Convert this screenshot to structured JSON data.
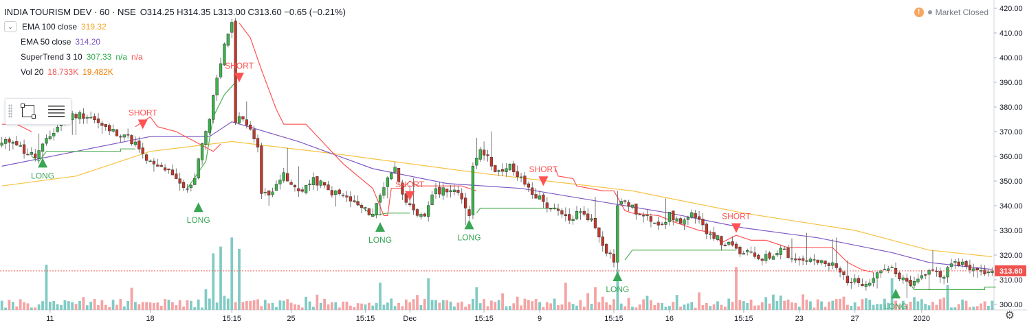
{
  "header": {
    "symbol": "INDIA TOURISM DEV · 60 · NSE",
    "ohlc": "O314.25 H314.35 L313.00 C313.60 −0.65 (−0.21%)",
    "collapse_icon": "chevron-down-icon"
  },
  "indicators": [
    {
      "name": "EMA 100 close",
      "values": [
        "319.32"
      ],
      "colors": [
        "#f5c242"
      ]
    },
    {
      "name": "EMA 50 close",
      "values": [
        "314.20"
      ],
      "colors": [
        "#7e57c2"
      ]
    },
    {
      "name": "SuperTrend 3 10",
      "values": [
        "307.33",
        "n/a",
        "n/a"
      ],
      "colors": [
        "#2eaa4a",
        "#2eaa4a",
        "#ef5350"
      ]
    },
    {
      "name": "Vol 20",
      "values": [
        "18.733K",
        "19.482K"
      ],
      "colors": [
        "#ef5350",
        "#f57c00"
      ]
    }
  ],
  "market_status": {
    "label": "Market Closed",
    "warn_icon": "!"
  },
  "colors": {
    "up": "#26a69a",
    "down": "#ef5350",
    "up_body": "#3ab34a",
    "down_body": "#c0392b",
    "ema100": "#f5c242",
    "ema50": "#7e57c2",
    "st_up": "#4caf50",
    "st_down": "#ff5252",
    "last_price": "#ef5350"
  },
  "price_tag": "313.60",
  "chart_data": {
    "type": "candlestick",
    "title": "INDIA TOURISM DEV · 60 · NSE",
    "ylim": [
      298,
      422
    ],
    "y_ticks": [
      300,
      310,
      320,
      330,
      340,
      350,
      360,
      370,
      380,
      390,
      400,
      410,
      420
    ],
    "y_tick_labels": [
      "300.00",
      "310.00",
      "320.00",
      "330.00",
      "340.00",
      "350.00",
      "360.00",
      "370.00",
      "380.00",
      "390.00",
      "400.00",
      "410.00",
      "420.00"
    ],
    "x_ticks": [
      "11",
      "18",
      "15:15",
      "25",
      "15:15",
      "Dec",
      "15:15",
      "9",
      "15:15",
      "16",
      "15:15",
      "23",
      "27",
      "2020"
    ],
    "x_tick_positions": [
      13,
      40,
      62,
      78,
      98,
      110,
      130,
      145,
      165,
      180,
      200,
      215,
      230,
      248
    ],
    "bar_count": 268,
    "anchors": [
      [
        0,
        365
      ],
      [
        3,
        367
      ],
      [
        6,
        362
      ],
      [
        9,
        360
      ],
      [
        12,
        366
      ],
      [
        15,
        372
      ],
      [
        18,
        376
      ],
      [
        21,
        377
      ],
      [
        24,
        376
      ],
      [
        27,
        372
      ],
      [
        30,
        370
      ],
      [
        33,
        369
      ],
      [
        36,
        365
      ],
      [
        38,
        360
      ],
      [
        41,
        356
      ],
      [
        44,
        355
      ],
      [
        47,
        350
      ],
      [
        50,
        346
      ],
      [
        52,
        352
      ],
      [
        54,
        366
      ],
      [
        56,
        375
      ],
      [
        58,
        392
      ],
      [
        60,
        405
      ],
      [
        62,
        413
      ],
      [
        63,
        375
      ],
      [
        65,
        376
      ],
      [
        67,
        370
      ],
      [
        69,
        365
      ],
      [
        70,
        345
      ],
      [
        72,
        344
      ],
      [
        74,
        350
      ],
      [
        76,
        352
      ],
      [
        78,
        348
      ],
      [
        80,
        346
      ],
      [
        82,
        348
      ],
      [
        84,
        350
      ],
      [
        86,
        349
      ],
      [
        88,
        346
      ],
      [
        90,
        345
      ],
      [
        92,
        344
      ],
      [
        94,
        342
      ],
      [
        96,
        340
      ],
      [
        98,
        338
      ],
      [
        100,
        337
      ],
      [
        102,
        344
      ],
      [
        104,
        352
      ],
      [
        106,
        355
      ],
      [
        108,
        346
      ],
      [
        110,
        339
      ],
      [
        112,
        335
      ],
      [
        114,
        336
      ],
      [
        116,
        345
      ],
      [
        118,
        346
      ],
      [
        120,
        347
      ],
      [
        122,
        346
      ],
      [
        124,
        342
      ],
      [
        126,
        337
      ],
      [
        127,
        356
      ],
      [
        129,
        364
      ],
      [
        131,
        359
      ],
      [
        133,
        355
      ],
      [
        135,
        353
      ],
      [
        137,
        356
      ],
      [
        139,
        352
      ],
      [
        141,
        349
      ],
      [
        143,
        345
      ],
      [
        145,
        343
      ],
      [
        147,
        340
      ],
      [
        149,
        338
      ],
      [
        151,
        336
      ],
      [
        153,
        334
      ],
      [
        155,
        337
      ],
      [
        157,
        337
      ],
      [
        159,
        334
      ],
      [
        161,
        328
      ],
      [
        163,
        322
      ],
      [
        165,
        318
      ],
      [
        166,
        340
      ],
      [
        168,
        342
      ],
      [
        170,
        339
      ],
      [
        172,
        336
      ],
      [
        174,
        335
      ],
      [
        176,
        334
      ],
      [
        178,
        333
      ],
      [
        180,
        336
      ],
      [
        182,
        334
      ],
      [
        184,
        334
      ],
      [
        186,
        336
      ],
      [
        188,
        333
      ],
      [
        190,
        330
      ],
      [
        192,
        328
      ],
      [
        194,
        325
      ],
      [
        196,
        324
      ],
      [
        198,
        322
      ],
      [
        200,
        320
      ],
      [
        202,
        321
      ],
      [
        204,
        319
      ],
      [
        206,
        319
      ],
      [
        208,
        320
      ],
      [
        210,
        324
      ],
      [
        212,
        320
      ],
      [
        214,
        318
      ],
      [
        216,
        318
      ],
      [
        218,
        318
      ],
      [
        220,
        317
      ],
      [
        222,
        316
      ],
      [
        224,
        316
      ],
      [
        226,
        313
      ],
      [
        228,
        310
      ],
      [
        230,
        309
      ],
      [
        232,
        309
      ],
      [
        234,
        310
      ],
      [
        236,
        313
      ],
      [
        238,
        315
      ],
      [
        240,
        314
      ],
      [
        242,
        310
      ],
      [
        244,
        309
      ],
      [
        246,
        308
      ],
      [
        248,
        311
      ],
      [
        250,
        314
      ],
      [
        252,
        313
      ],
      [
        254,
        312
      ],
      [
        256,
        315
      ],
      [
        258,
        317
      ],
      [
        260,
        316
      ],
      [
        262,
        314
      ],
      [
        264,
        313
      ],
      [
        267,
        313.6
      ]
    ],
    "series": [
      {
        "name": "EMA 100 close",
        "values": [
          [
            0,
            348
          ],
          [
            20,
            352
          ],
          [
            40,
            362
          ],
          [
            62,
            366
          ],
          [
            90,
            361
          ],
          [
            130,
            353
          ],
          [
            170,
            346
          ],
          [
            200,
            337
          ],
          [
            230,
            330
          ],
          [
            250,
            322
          ],
          [
            267,
            319.32
          ]
        ]
      },
      {
        "name": "EMA 50 close",
        "values": [
          [
            0,
            356
          ],
          [
            20,
            362
          ],
          [
            40,
            368
          ],
          [
            56,
            368
          ],
          [
            62,
            374
          ],
          [
            80,
            366
          ],
          [
            100,
            355
          ],
          [
            120,
            349
          ],
          [
            140,
            347
          ],
          [
            160,
            342
          ],
          [
            180,
            337
          ],
          [
            200,
            331
          ],
          [
            220,
            327
          ],
          [
            240,
            321
          ],
          [
            250,
            317
          ],
          [
            267,
            314.2
          ]
        ]
      }
    ],
    "supertrend_up": [
      [
        [
          8,
          360
        ],
        [
          10,
          358
        ],
        [
          12,
          362
        ],
        [
          32,
          362
        ],
        [
          32,
          363
        ],
        [
          36,
          363
        ]
      ],
      [
        [
          50,
          347
        ],
        [
          55,
          358
        ],
        [
          57,
          376
        ],
        [
          60,
          385
        ],
        [
          63,
          390
        ]
      ],
      [
        [
          95,
          342
        ],
        [
          100,
          336
        ],
        [
          104,
          337
        ],
        [
          110,
          337
        ]
      ],
      [
        [
          128,
          337
        ],
        [
          129,
          339
        ],
        [
          150,
          339
        ]
      ],
      [
        [
          168,
          318
        ],
        [
          170,
          322
        ],
        [
          198,
          322
        ]
      ],
      [
        [
          244,
          310
        ],
        [
          246,
          306
        ],
        [
          265,
          306
        ],
        [
          265,
          307
        ],
        [
          268,
          307
        ]
      ]
    ],
    "supertrend_down": [
      [
        [
          0,
          373
        ],
        [
          4,
          373
        ],
        [
          8,
          370
        ]
      ],
      [
        [
          36,
          372
        ],
        [
          40,
          376
        ],
        [
          42,
          372
        ],
        [
          47,
          370
        ],
        [
          52,
          366
        ],
        [
          57,
          362
        ],
        [
          59,
          365
        ]
      ],
      [
        [
          64,
          414
        ],
        [
          67,
          408
        ],
        [
          70,
          395
        ],
        [
          74,
          379
        ],
        [
          76,
          373
        ],
        [
          82,
          373
        ],
        [
          87,
          365
        ],
        [
          92,
          357
        ],
        [
          96,
          352
        ],
        [
          100,
          347
        ],
        [
          103,
          336
        ],
        [
          104,
          336
        ],
        [
          105,
          347
        ],
        [
          108,
          347
        ],
        [
          110,
          350
        ],
        [
          112,
          348
        ],
        [
          118,
          348
        ],
        [
          124,
          348
        ],
        [
          128,
          346
        ]
      ],
      [
        [
          149,
          356
        ],
        [
          150,
          352
        ],
        [
          154,
          351
        ],
        [
          155,
          348
        ],
        [
          162,
          346
        ],
        [
          165,
          346
        ],
        [
          168,
          338
        ],
        [
          170,
          337
        ],
        [
          177,
          336
        ],
        [
          182,
          333
        ],
        [
          188,
          330
        ],
        [
          192,
          329
        ],
        [
          194,
          325
        ],
        [
          198,
          328
        ],
        [
          202,
          326
        ],
        [
          206,
          326
        ],
        [
          212,
          323
        ],
        [
          218,
          323
        ],
        [
          224,
          323
        ],
        [
          228,
          317
        ],
        [
          232,
          314
        ],
        [
          235,
          313
        ]
      ]
    ],
    "signals": [
      {
        "label": "LONG",
        "bar": 11,
        "price": 361
      },
      {
        "label": "SHORT",
        "bar": 38,
        "price": 371
      },
      {
        "label": "LONG",
        "bar": 53,
        "price": 343
      },
      {
        "label": "SHORT",
        "bar": 64,
        "price": 390
      },
      {
        "label": "LONG",
        "bar": 102,
        "price": 335
      },
      {
        "label": "SHORT",
        "bar": 110,
        "price": 342
      },
      {
        "label": "LONG",
        "bar": 126,
        "price": 336
      },
      {
        "label": "SHORT",
        "bar": 146,
        "price": 348
      },
      {
        "label": "LONG",
        "bar": 166,
        "price": 315
      },
      {
        "label": "SHORT",
        "bar": 198,
        "price": 329
      },
      {
        "label": "LONG",
        "bar": 241,
        "price": 308
      }
    ],
    "volume_spikes": [
      [
        12,
        20
      ],
      [
        57,
        25
      ],
      [
        59,
        28
      ],
      [
        62,
        32
      ],
      [
        64,
        27
      ],
      [
        102,
        12
      ],
      [
        115,
        14
      ],
      [
        128,
        10
      ],
      [
        152,
        12
      ],
      [
        160,
        10
      ],
      [
        166,
        18
      ],
      [
        198,
        19
      ],
      [
        240,
        14
      ],
      [
        255,
        11
      ]
    ],
    "last_price": 313.6
  }
}
